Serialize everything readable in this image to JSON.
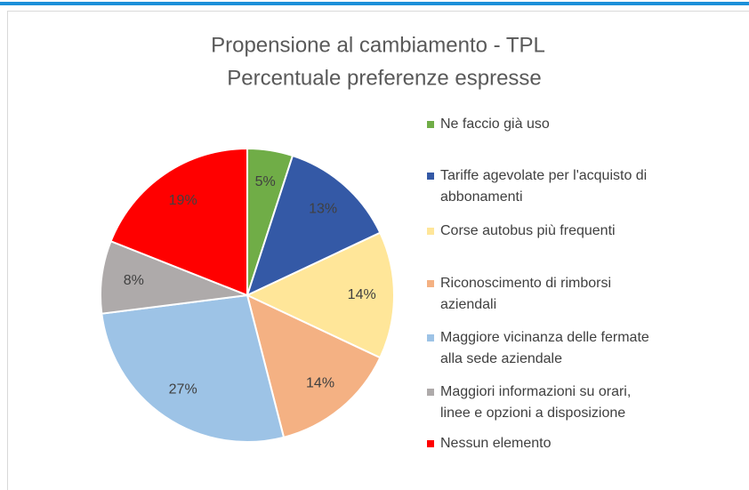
{
  "chart_data": {
    "type": "pie",
    "title": "Propensione al cambiamento - TPL",
    "subtitle": "Percentuale preferenze espresse",
    "categories": [
      "Ne faccio già uso",
      "Tariffe agevolate per l'acquisto di abbonamenti",
      "Corse autobus più frequenti",
      "Riconoscimento di rimborsi aziendali",
      "Maggiore vicinanza delle fermate alla sede aziendale",
      "Maggiori informazioni su orari, linee e opzioni a disposizione",
      "Nessun elemento"
    ],
    "values": [
      5,
      13,
      14,
      14,
      27,
      8,
      19
    ],
    "value_labels": [
      "5%",
      "13%",
      "14%",
      "14%",
      "27%",
      "8%",
      "19%"
    ],
    "colors": [
      "#70ad47",
      "#3459a6",
      "#ffe699",
      "#f4b183",
      "#9dc3e6",
      "#aeaaaa",
      "#ff0000"
    ],
    "legend": "right"
  }
}
